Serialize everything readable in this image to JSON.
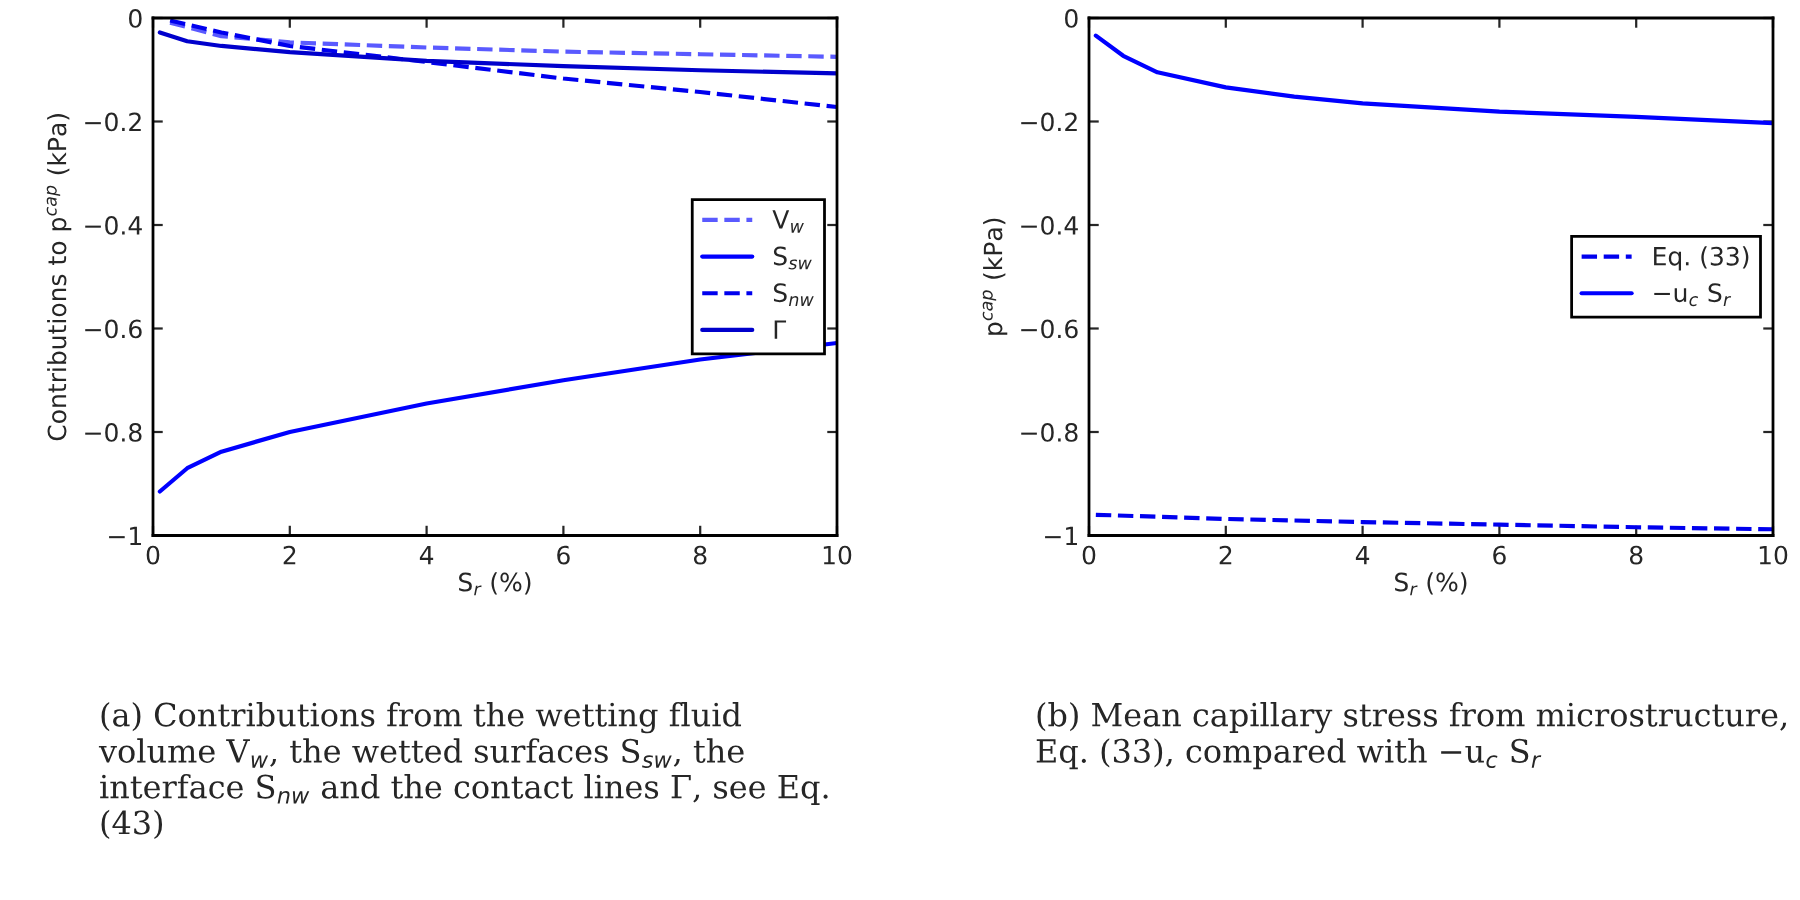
{
  "chart_data": [
    {
      "type": "line",
      "xlabel": "S$_{r}$ (%)",
      "ylabel": "Contributions to p$^{cap}$ (kPa)",
      "xlim": [
        0,
        10
      ],
      "ylim": [
        -1,
        0
      ],
      "xticks": [
        0,
        2,
        4,
        6,
        8,
        10
      ],
      "yticks": [
        {
          "value": -1,
          "label": "−1"
        },
        {
          "value": -0.8,
          "label": "−0.8"
        },
        {
          "value": -0.6,
          "label": "−0.6"
        },
        {
          "value": -0.4,
          "label": "−0.4"
        },
        {
          "value": -0.2,
          "label": "−0.2"
        },
        0
      ],
      "grid": false,
      "legend": "right",
      "marker": "none",
      "series": [
        {
          "name": "V$_{w}$",
          "color": "#5a5aff",
          "line_style": "dashed",
          "x": [
            0.25,
            1,
            2,
            4,
            6,
            8,
            10
          ],
          "values": [
            -0.009,
            -0.035,
            -0.047,
            -0.057,
            -0.065,
            -0.07,
            -0.075
          ]
        },
        {
          "name": "S$_{sw}$",
          "color": "#0000ff",
          "line_style": "solid",
          "x": [
            0.1,
            0.5,
            1,
            2,
            4,
            6,
            8,
            10
          ],
          "values": [
            -0.915,
            -0.87,
            -0.838,
            -0.8,
            -0.745,
            -0.7,
            -0.66,
            -0.628
          ]
        },
        {
          "name": "S$_{nw}$",
          "color": "#0000ee",
          "line_style": "dashed",
          "x": [
            0.25,
            1,
            2,
            4,
            6,
            8,
            10
          ],
          "values": [
            -0.005,
            -0.028,
            -0.054,
            -0.085,
            -0.117,
            -0.143,
            -0.172
          ]
        },
        {
          "name": "Γ",
          "color": "#0000cc",
          "line_style": "solid",
          "x": [
            0.1,
            0.5,
            1,
            2,
            4,
            6,
            8,
            10
          ],
          "values": [
            -0.028,
            -0.045,
            -0.054,
            -0.066,
            -0.083,
            -0.093,
            -0.101,
            -0.107
          ]
        }
      ],
      "annotations": [
        "(a) Contributions from the wetting fluid volume V$_{w}$, the wetted surfaces S$_{sw}$, the interface S$_{nw}$ and the contact lines Γ, see Eq. (43)"
      ]
    },
    {
      "type": "line",
      "xlabel": "S$_{r}$ (%)",
      "ylabel": "p$^{cap}$ (kPa)",
      "xlim": [
        0,
        10
      ],
      "ylim": [
        -1,
        0
      ],
      "xticks": [
        0,
        2,
        4,
        6,
        8,
        10
      ],
      "yticks": [
        {
          "value": -1,
          "label": "−1"
        },
        {
          "value": -0.8,
          "label": "−0.8"
        },
        {
          "value": -0.6,
          "label": "−0.6"
        },
        {
          "value": -0.4,
          "label": "−0.4"
        },
        {
          "value": -0.2,
          "label": "−0.2"
        },
        0
      ],
      "grid": false,
      "legend": "right",
      "marker": "none",
      "series": [
        {
          "name": "Eq. (33)",
          "color": "#0000ee",
          "line_style": "dashed",
          "x": [
            0.1,
            2,
            4,
            6,
            8,
            10
          ],
          "values": [
            -0.96,
            -0.968,
            -0.974,
            -0.979,
            -0.984,
            -0.988
          ]
        },
        {
          "name": "−u$_{c}$ S$_{r}$",
          "color": "#0000ff",
          "line_style": "solid",
          "x": [
            0.1,
            0.5,
            1,
            2,
            3,
            4,
            6,
            8,
            10
          ],
          "values": [
            -0.034,
            -0.073,
            -0.105,
            -0.134,
            -0.152,
            -0.165,
            -0.181,
            -0.191,
            -0.203
          ]
        }
      ],
      "annotations": [
        "(b) Mean capillary stress from microstructure, Eq. (33), compared with −u$_{c}$ S$_{r}$"
      ]
    }
  ]
}
